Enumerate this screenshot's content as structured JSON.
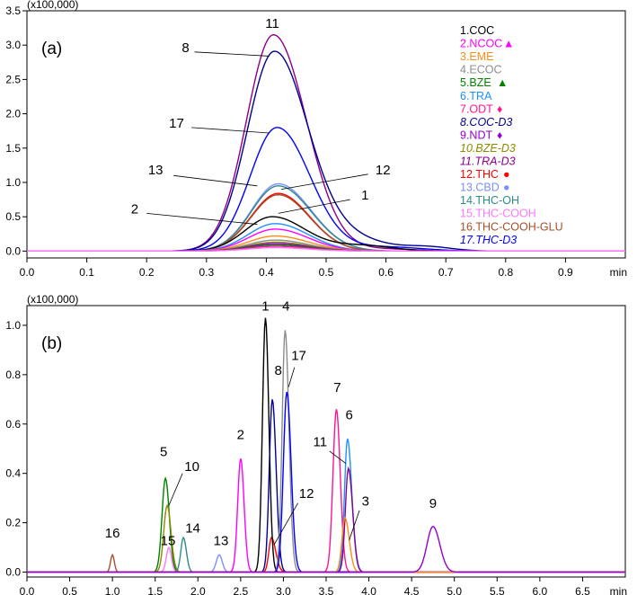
{
  "chart_data": [
    {
      "type": "line",
      "panel_label": "(a)",
      "scale_label": "(x100,000)",
      "x_unit": "min",
      "xlim": [
        0.0,
        1.0
      ],
      "ylim": [
        -0.1,
        3.5
      ],
      "x_ticks": [
        "0.0",
        "0.1",
        "0.2",
        "0.3",
        "0.4",
        "0.5",
        "0.6",
        "0.7",
        "0.8",
        "0.9"
      ],
      "y_ticks": [
        "0.0",
        "0.5",
        "1.0",
        "1.5",
        "2.0",
        "2.5",
        "3.0",
        "3.5"
      ],
      "legend": [
        {
          "text": "1.COC",
          "color": "#000000",
          "italic": false,
          "marker": ""
        },
        {
          "text": "2.NCOC",
          "color": "#ff00ff",
          "italic": false,
          "marker": "▲"
        },
        {
          "text": "3.EME",
          "color": "#ff8c1a",
          "italic": false,
          "marker": ""
        },
        {
          "text": "4.ECOC",
          "color": "#8c8c8c",
          "italic": false,
          "marker": ""
        },
        {
          "text": "5.BZE",
          "color": "#008000",
          "italic": false,
          "marker": "▲"
        },
        {
          "text": "6.TRA",
          "color": "#1e90ff",
          "italic": false,
          "marker": ""
        },
        {
          "text": "7.ODT",
          "color": "#ff1493",
          "italic": false,
          "marker": "♦"
        },
        {
          "text": "8.COC-D3",
          "color": "#00008b",
          "italic": true,
          "marker": ""
        },
        {
          "text": "9.NDT",
          "color": "#9400d3",
          "italic": false,
          "marker": "♦"
        },
        {
          "text": "10.BZE-D3",
          "color": "#8b8b00",
          "italic": true,
          "marker": ""
        },
        {
          "text": "11.TRA-D3",
          "color": "#8b008b",
          "italic": true,
          "marker": ""
        },
        {
          "text": "12.THC",
          "color": "#ff0000",
          "italic": false,
          "marker": "●"
        },
        {
          "text": "13.CBD",
          "color": "#7b8fff",
          "italic": false,
          "marker": "●"
        },
        {
          "text": "14.THC-OH",
          "color": "#2e8b87",
          "italic": false,
          "marker": ""
        },
        {
          "text": "15.THC-COOH",
          "color": "#ff77ff",
          "italic": false,
          "marker": ""
        },
        {
          "text": "16.THC-COOH-GLU",
          "color": "#a0522d",
          "italic": false,
          "marker": ""
        },
        {
          "text": "17.THC-D3",
          "color": "#0000ff",
          "italic": true,
          "marker": ""
        }
      ],
      "series": [
        {
          "id": "11",
          "color": "#8b008b",
          "center": 0.412,
          "height": 3.15,
          "w_left": 0.045,
          "w_right": 0.055,
          "tail": [
            {
              "t": 0.6,
              "h": 0.03,
              "w": 0.05
            }
          ]
        },
        {
          "id": "8",
          "color": "#00008b",
          "center": 0.413,
          "height": 2.88,
          "w_left": 0.045,
          "w_right": 0.055,
          "tail": [
            {
              "t": 0.53,
              "h": 0.2,
              "w": 0.06
            },
            {
              "t": 0.67,
              "h": 0.06,
              "w": 0.04
            }
          ]
        },
        {
          "id": "17",
          "color": "#0000ff",
          "center": 0.418,
          "height": 1.8,
          "w_left": 0.045,
          "w_right": 0.055,
          "tail": [
            {
              "t": 0.6,
              "h": 0.06,
              "w": 0.06
            }
          ]
        },
        {
          "id": "13",
          "color": "#7b8fff",
          "center": 0.42,
          "height": 0.98,
          "w_left": 0.045,
          "w_right": 0.055,
          "tail": []
        },
        {
          "id": "14",
          "color": "#2e8b87",
          "center": 0.42,
          "height": 0.95,
          "w_left": 0.045,
          "w_right": 0.055,
          "tail": []
        },
        {
          "id": "12",
          "color": "#ff0000",
          "center": 0.42,
          "height": 0.84,
          "w_left": 0.045,
          "w_right": 0.052,
          "tail": []
        },
        {
          "id": "16",
          "color": "#a0522d",
          "center": 0.42,
          "height": 0.82,
          "w_left": 0.045,
          "w_right": 0.052,
          "tail": []
        },
        {
          "id": "1",
          "color": "#000000",
          "center": 0.41,
          "height": 0.5,
          "w_left": 0.045,
          "w_right": 0.055,
          "tail": [
            {
              "t": 0.56,
              "h": 0.08,
              "w": 0.05
            }
          ]
        },
        {
          "id": "6",
          "color": "#1e90ff",
          "center": 0.415,
          "height": 0.4,
          "w_left": 0.045,
          "w_right": 0.055,
          "tail": []
        },
        {
          "id": "2",
          "color": "#ff00ff",
          "center": 0.415,
          "height": 0.32,
          "w_left": 0.045,
          "w_right": 0.055,
          "tail": []
        },
        {
          "id": "3",
          "color": "#ff8c1a",
          "center": 0.415,
          "height": 0.22,
          "w_left": 0.045,
          "w_right": 0.055,
          "tail": []
        },
        {
          "id": "4",
          "color": "#8c8c8c",
          "center": 0.415,
          "height": 0.16,
          "w_left": 0.045,
          "w_right": 0.055,
          "tail": []
        },
        {
          "id": "10",
          "color": "#8b8b00",
          "center": 0.415,
          "height": 0.13,
          "w_left": 0.045,
          "w_right": 0.055,
          "tail": []
        },
        {
          "id": "9",
          "color": "#9400d3",
          "center": 0.415,
          "height": 0.11,
          "w_left": 0.045,
          "w_right": 0.055,
          "tail": []
        },
        {
          "id": "5",
          "color": "#008000",
          "center": 0.415,
          "height": 0.09,
          "w_left": 0.045,
          "w_right": 0.055,
          "tail": []
        },
        {
          "id": "7",
          "color": "#ff1493",
          "center": 0.415,
          "height": 0.07,
          "w_left": 0.045,
          "w_right": 0.055,
          "tail": []
        },
        {
          "id": "15",
          "color": "#ff77ff",
          "center": 0.415,
          "height": 0.05,
          "w_left": 0.045,
          "w_right": 0.055,
          "tail": []
        }
      ],
      "annotations": [
        {
          "text": "11",
          "tx": 0.41,
          "ty": 3.25,
          "line": null
        },
        {
          "text": "8",
          "tx": 0.265,
          "ty": 2.9,
          "line": [
            0.28,
            2.9,
            0.405,
            2.84
          ]
        },
        {
          "text": "17",
          "tx": 0.25,
          "ty": 1.8,
          "line": [
            0.275,
            1.8,
            0.405,
            1.72
          ]
        },
        {
          "text": "13",
          "tx": 0.215,
          "ty": 1.12,
          "line": [
            0.245,
            1.1,
            0.385,
            0.95
          ]
        },
        {
          "text": "12",
          "tx": 0.595,
          "ty": 1.12,
          "line": [
            0.57,
            1.12,
            0.425,
            0.9
          ]
        },
        {
          "text": "2",
          "tx": 0.18,
          "ty": 0.55,
          "line": [
            0.2,
            0.55,
            0.385,
            0.39
          ]
        },
        {
          "text": "1",
          "tx": 0.565,
          "ty": 0.75,
          "line": [
            0.54,
            0.75,
            0.42,
            0.55
          ]
        }
      ]
    },
    {
      "type": "line",
      "panel_label": "(b)",
      "scale_label": "(x100,000)",
      "x_unit": "min",
      "xlim": [
        0.0,
        7.0
      ],
      "ylim": [
        -0.02,
        1.08
      ],
      "x_ticks": [
        "0.0",
        "0.5",
        "1.0",
        "1.5",
        "2.0",
        "2.5",
        "3.0",
        "3.5",
        "4.0",
        "4.5",
        "5.0",
        "5.5",
        "6.0",
        "6.5"
      ],
      "y_ticks": [
        "0.0",
        "0.2",
        "0.4",
        "0.6",
        "0.8",
        "1.0"
      ],
      "series": [
        {
          "id": "16",
          "color": "#a0522d",
          "center": 1.0,
          "height": 0.07,
          "w_left": 0.022,
          "w_right": 0.022,
          "tail": []
        },
        {
          "id": "15",
          "color": "#ff77ff",
          "center": 1.66,
          "height": 0.1,
          "w_left": 0.03,
          "w_right": 0.03,
          "tail": []
        },
        {
          "id": "5",
          "color": "#008000",
          "center": 1.62,
          "height": 0.38,
          "w_left": 0.04,
          "w_right": 0.045,
          "tail": []
        },
        {
          "id": "10",
          "color": "#8b8b00",
          "center": 1.64,
          "height": 0.27,
          "w_left": 0.04,
          "w_right": 0.045,
          "tail": []
        },
        {
          "id": "14",
          "color": "#2e8b87",
          "center": 1.83,
          "height": 0.14,
          "w_left": 0.03,
          "w_right": 0.035,
          "tail": []
        },
        {
          "id": "13",
          "color": "#7b8fff",
          "center": 2.25,
          "height": 0.07,
          "w_left": 0.035,
          "w_right": 0.035,
          "tail": []
        },
        {
          "id": "2",
          "color": "#ff00ff",
          "center": 2.5,
          "height": 0.46,
          "w_left": 0.035,
          "w_right": 0.04,
          "tail": []
        },
        {
          "id": "12",
          "color": "#ff0000",
          "center": 2.86,
          "height": 0.14,
          "w_left": 0.03,
          "w_right": 0.05,
          "tail": []
        },
        {
          "id": "1",
          "color": "#000000",
          "center": 2.79,
          "height": 1.03,
          "w_left": 0.035,
          "w_right": 0.04,
          "tail": []
        },
        {
          "id": "8",
          "color": "#00008b",
          "center": 2.87,
          "height": 0.7,
          "w_left": 0.035,
          "w_right": 0.045,
          "tail": []
        },
        {
          "id": "4",
          "color": "#8c8c8c",
          "center": 3.02,
          "height": 0.98,
          "w_left": 0.035,
          "w_right": 0.045,
          "tail": []
        },
        {
          "id": "17",
          "color": "#0000ff",
          "center": 3.04,
          "height": 0.73,
          "w_left": 0.04,
          "w_right": 0.05,
          "tail": []
        },
        {
          "id": "7",
          "color": "#ff1493",
          "center": 3.62,
          "height": 0.66,
          "w_left": 0.04,
          "w_right": 0.045,
          "tail": []
        },
        {
          "id": "6",
          "color": "#1e90ff",
          "center": 3.75,
          "height": 0.54,
          "w_left": 0.035,
          "w_right": 0.05,
          "tail": []
        },
        {
          "id": "11",
          "color": "#8b008b",
          "center": 3.76,
          "height": 0.42,
          "w_left": 0.035,
          "w_right": 0.05,
          "tail": []
        },
        {
          "id": "3",
          "color": "#ff8c1a",
          "center": 3.72,
          "height": 0.22,
          "w_left": 0.035,
          "w_right": 0.05,
          "tail": []
        },
        {
          "id": "9",
          "color": "#9400d3",
          "center": 4.75,
          "height": 0.185,
          "w_left": 0.07,
          "w_right": 0.08,
          "tail": []
        }
      ],
      "annotations": [
        {
          "text": "16",
          "tx": 1.0,
          "ty": 0.14,
          "line": null
        },
        {
          "text": "15",
          "tx": 1.65,
          "ty": 0.11,
          "line": null
        },
        {
          "text": "5",
          "tx": 1.6,
          "ty": 0.47,
          "line": null
        },
        {
          "text": "10",
          "tx": 1.93,
          "ty": 0.41,
          "line": [
            1.82,
            0.4,
            1.66,
            0.27
          ]
        },
        {
          "text": "14",
          "tx": 1.94,
          "ty": 0.16,
          "line": null
        },
        {
          "text": "13",
          "tx": 2.27,
          "ty": 0.11,
          "line": null
        },
        {
          "text": "2",
          "tx": 2.5,
          "ty": 0.54,
          "line": null
        },
        {
          "text": "1",
          "tx": 2.79,
          "ty": 1.06,
          "line": null
        },
        {
          "text": "4",
          "tx": 3.03,
          "ty": 1.06,
          "line": null
        },
        {
          "text": "8",
          "tx": 2.94,
          "ty": 0.8,
          "line": null
        },
        {
          "text": "17",
          "tx": 3.18,
          "ty": 0.86,
          "line": [
            3.13,
            0.83,
            3.06,
            0.75
          ]
        },
        {
          "text": "12",
          "tx": 3.27,
          "ty": 0.3,
          "line": [
            3.17,
            0.28,
            2.89,
            0.11
          ]
        },
        {
          "text": "7",
          "tx": 3.63,
          "ty": 0.73,
          "line": null
        },
        {
          "text": "6",
          "tx": 3.77,
          "ty": 0.62,
          "line": null
        },
        {
          "text": "11",
          "tx": 3.43,
          "ty": 0.51,
          "line": [
            3.54,
            0.49,
            3.73,
            0.44
          ]
        },
        {
          "text": "3",
          "tx": 3.96,
          "ty": 0.27,
          "line": [
            3.89,
            0.25,
            3.77,
            0.13
          ]
        },
        {
          "text": "9",
          "tx": 4.75,
          "ty": 0.26,
          "line": null
        }
      ]
    }
  ]
}
